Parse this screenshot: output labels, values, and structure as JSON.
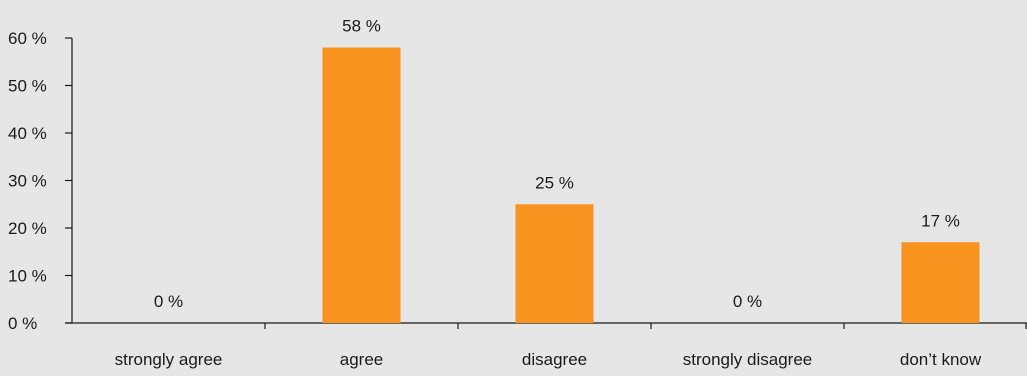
{
  "chart_data": {
    "type": "bar",
    "title": "",
    "xlabel": "",
    "ylabel": "",
    "categories": [
      "strongly agree",
      "agree",
      "disagree",
      "strongly disagree",
      "don’t know"
    ],
    "values": [
      0,
      58,
      25,
      0,
      17
    ],
    "value_labels": [
      "0 %",
      "58 %",
      "25 %",
      "0 %",
      "17 %"
    ],
    "ylim": [
      0,
      60
    ],
    "yticks": [
      0,
      10,
      20,
      30,
      40,
      50,
      60
    ],
    "ytick_labels": [
      "0 %",
      "10 %",
      "20 %",
      "30 %",
      "40 %",
      "50 %",
      "60 %"
    ],
    "grid": false,
    "legend": "none",
    "bar_color": "#f7931e",
    "background_color": "#e6e6e6"
  }
}
